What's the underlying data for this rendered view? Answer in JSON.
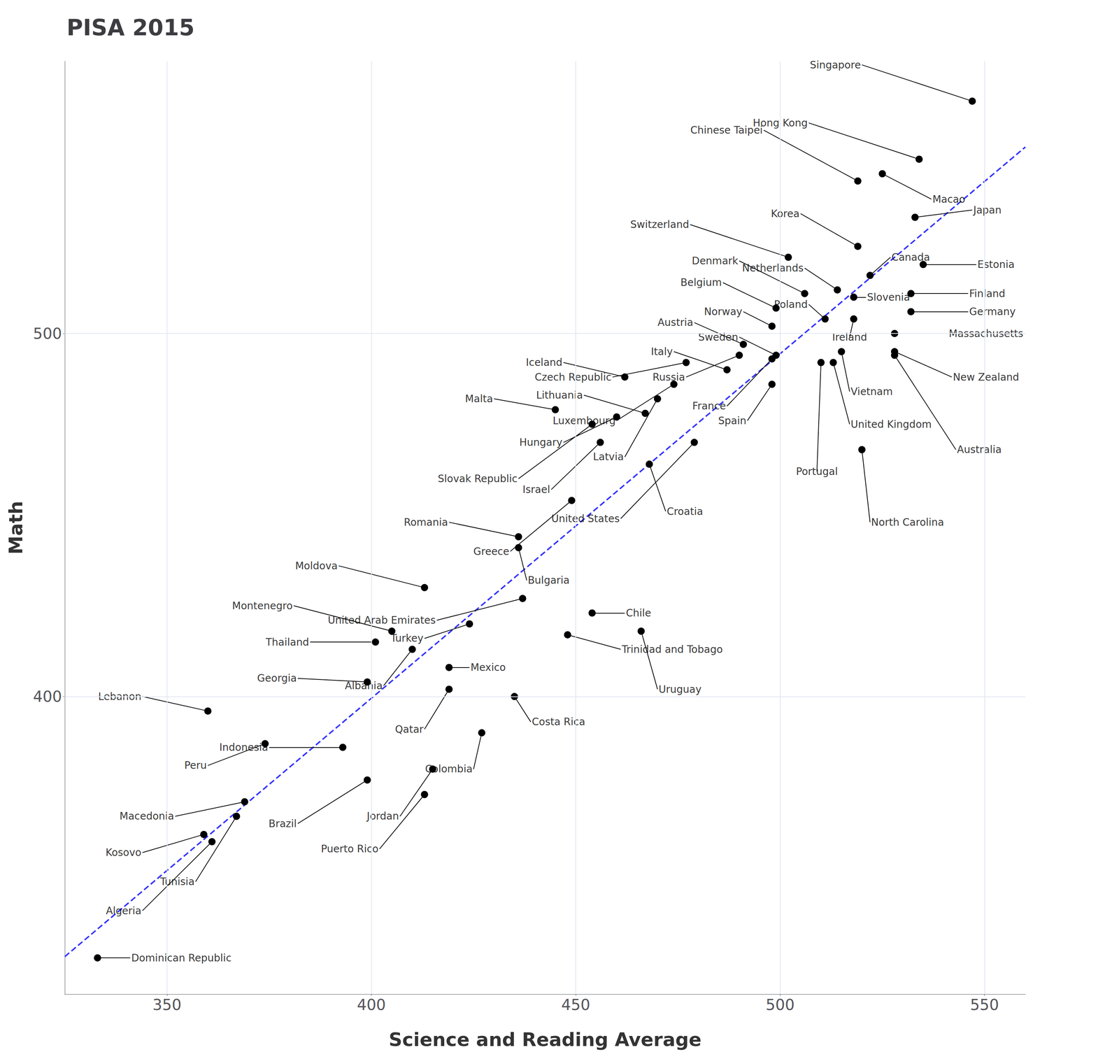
{
  "chart_data": {
    "type": "scatter",
    "title": "PISA 2015",
    "xlabel": "Science and Reading Average",
    "ylabel": "Math",
    "xlim": [
      325,
      560
    ],
    "ylim": [
      318,
      575
    ],
    "xticks": [
      350,
      400,
      450,
      500,
      550
    ],
    "yticks": [
      400,
      500
    ],
    "grid": true,
    "color": "#000000",
    "points": [
      {
        "name": "Singapore",
        "x": 547,
        "y": 564,
        "label_x": 520,
        "label_y": 574
      },
      {
        "name": "Hong Kong",
        "x": 534,
        "y": 548,
        "label_x": 507,
        "label_y": 558
      },
      {
        "name": "Macao",
        "x": 525,
        "y": 544,
        "label_x": 537,
        "label_y": 537
      },
      {
        "name": "Japan",
        "x": 533,
        "y": 532,
        "label_x": 547,
        "label_y": 534
      },
      {
        "name": "Chinese Taipei",
        "x": 519,
        "y": 542,
        "label_x": 496,
        "label_y": 556
      },
      {
        "name": "Korea",
        "x": 519,
        "y": 524,
        "label_x": 505,
        "label_y": 533
      },
      {
        "name": "Switzerland",
        "x": 502,
        "y": 521,
        "label_x": 478,
        "label_y": 530
      },
      {
        "name": "Estonia",
        "x": 535,
        "y": 519,
        "label_x": 548,
        "label_y": 519
      },
      {
        "name": "Canada",
        "x": 522,
        "y": 516,
        "label_x": 527,
        "label_y": 521
      },
      {
        "name": "Netherlands",
        "x": 514,
        "y": 512,
        "label_x": 506,
        "label_y": 518
      },
      {
        "name": "Denmark",
        "x": 506,
        "y": 511,
        "label_x": 490,
        "label_y": 520
      },
      {
        "name": "Belgium",
        "x": 499,
        "y": 507,
        "label_x": 486,
        "label_y": 514
      },
      {
        "name": "Germany",
        "x": 532,
        "y": 506,
        "label_x": 546,
        "label_y": 506
      },
      {
        "name": "Slovenia",
        "x": 518,
        "y": 510,
        "label_x": 521,
        "label_y": 510
      },
      {
        "name": "Finland",
        "x": 532,
        "y": 511,
        "label_x": 546,
        "label_y": 511
      },
      {
        "name": "Poland",
        "x": 511,
        "y": 504,
        "label_x": 507,
        "label_y": 508
      },
      {
        "name": "Austria",
        "x": 491,
        "y": 497,
        "label_x": 479,
        "label_y": 503
      },
      {
        "name": "Sweden",
        "x": 499,
        "y": 494,
        "label_x": 490,
        "label_y": 499
      },
      {
        "name": "Ireland",
        "x": 518,
        "y": 504,
        "label_x": 517,
        "label_y": 499
      },
      {
        "name": "Norway",
        "x": 498,
        "y": 502,
        "label_x": 491,
        "label_y": 506
      },
      {
        "name": "Italy",
        "x": 487,
        "y": 490,
        "label_x": 474,
        "label_y": 495
      },
      {
        "name": "Russia",
        "x": 490,
        "y": 494,
        "label_x": 477,
        "label_y": 488
      },
      {
        "name": "Iceland",
        "x": 462,
        "y": 488,
        "label_x": 447,
        "label_y": 492
      },
      {
        "name": "Czech Republic",
        "x": 477,
        "y": 492,
        "label_x": 459,
        "label_y": 488
      },
      {
        "name": "France",
        "x": 498,
        "y": 493,
        "label_x": 487,
        "label_y": 480
      },
      {
        "name": "Massachusetts",
        "x": 528,
        "y": 500,
        "label_x": 541,
        "label_y": 500
      },
      {
        "name": "Vietnam",
        "x": 515,
        "y": 495,
        "label_x": 517,
        "label_y": 484
      },
      {
        "name": "New Zealand",
        "x": 528,
        "y": 495,
        "label_x": 542,
        "label_y": 488
      },
      {
        "name": "Lithuania",
        "x": 467,
        "y": 478,
        "label_x": 452,
        "label_y": 483
      },
      {
        "name": "Luxembourg",
        "x": 474,
        "y": 486,
        "label_x": 460,
        "label_y": 476
      },
      {
        "name": "Malta",
        "x": 445,
        "y": 479,
        "label_x": 430,
        "label_y": 482
      },
      {
        "name": "Spain",
        "x": 498,
        "y": 486,
        "label_x": 492,
        "label_y": 476
      },
      {
        "name": "United Kingdom",
        "x": 513,
        "y": 492,
        "label_x": 517,
        "label_y": 475
      },
      {
        "name": "Hungary",
        "x": 460,
        "y": 477,
        "label_x": 447,
        "label_y": 470
      },
      {
        "name": "Latvia",
        "x": 470,
        "y": 482,
        "label_x": 462,
        "label_y": 466
      },
      {
        "name": "Portugal",
        "x": 510,
        "y": 492,
        "label_x": 509,
        "label_y": 462
      },
      {
        "name": "Australia",
        "x": 528,
        "y": 494,
        "label_x": 543,
        "label_y": 468
      },
      {
        "name": "Slovak Republic",
        "x": 454,
        "y": 475,
        "label_x": 436,
        "label_y": 460
      },
      {
        "name": "Israel",
        "x": 456,
        "y": 470,
        "label_x": 444,
        "label_y": 457
      },
      {
        "name": "United States",
        "x": 479,
        "y": 470,
        "label_x": 461,
        "label_y": 449
      },
      {
        "name": "North Carolina",
        "x": 520,
        "y": 468,
        "label_x": 522,
        "label_y": 448
      },
      {
        "name": "Romania",
        "x": 436,
        "y": 444,
        "label_x": 419,
        "label_y": 448
      },
      {
        "name": "Greece",
        "x": 449,
        "y": 454,
        "label_x": 434,
        "label_y": 440
      },
      {
        "name": "Croatia",
        "x": 468,
        "y": 464,
        "label_x": 472,
        "label_y": 451
      },
      {
        "name": "Bulgaria",
        "x": 436,
        "y": 441,
        "label_x": 438,
        "label_y": 432
      },
      {
        "name": "Moldova",
        "x": 413,
        "y": 430,
        "label_x": 392,
        "label_y": 436
      },
      {
        "name": "United Arab Emirates",
        "x": 437,
        "y": 427,
        "label_x": 416,
        "label_y": 421
      },
      {
        "name": "Montenegro",
        "x": 405,
        "y": 418,
        "label_x": 381,
        "label_y": 425
      },
      {
        "name": "Turkey",
        "x": 424,
        "y": 420,
        "label_x": 413,
        "label_y": 416
      },
      {
        "name": "Thailand",
        "x": 401,
        "y": 415,
        "label_x": 385,
        "label_y": 415
      },
      {
        "name": "Chile",
        "x": 454,
        "y": 423,
        "label_x": 462,
        "label_y": 423
      },
      {
        "name": "Trinidad and Tobago",
        "x": 448,
        "y": 417,
        "label_x": 461,
        "label_y": 413
      },
      {
        "name": "Georgia",
        "x": 399,
        "y": 404,
        "label_x": 382,
        "label_y": 405
      },
      {
        "name": "Albania",
        "x": 410,
        "y": 413,
        "label_x": 403,
        "label_y": 403
      },
      {
        "name": "Mexico",
        "x": 419,
        "y": 408,
        "label_x": 424,
        "label_y": 408
      },
      {
        "name": "Lebanon",
        "x": 360,
        "y": 396,
        "label_x": 344,
        "label_y": 400
      },
      {
        "name": "Uruguay",
        "x": 466,
        "y": 418,
        "label_x": 470,
        "label_y": 402
      },
      {
        "name": "Qatar",
        "x": 419,
        "y": 402,
        "label_x": 413,
        "label_y": 391
      },
      {
        "name": "Costa Rica",
        "x": 435,
        "y": 400,
        "label_x": 439,
        "label_y": 393
      },
      {
        "name": "Indonesia",
        "x": 393,
        "y": 386,
        "label_x": 375,
        "label_y": 386
      },
      {
        "name": "Peru",
        "x": 374,
        "y": 387,
        "label_x": 360,
        "label_y": 381
      },
      {
        "name": "Colombia",
        "x": 427,
        "y": 390,
        "label_x": 425,
        "label_y": 380
      },
      {
        "name": "Macedonia",
        "x": 369,
        "y": 371,
        "label_x": 352,
        "label_y": 367
      },
      {
        "name": "Brazil",
        "x": 399,
        "y": 377,
        "label_x": 382,
        "label_y": 365
      },
      {
        "name": "Jordan",
        "x": 415,
        "y": 380,
        "label_x": 407,
        "label_y": 367
      },
      {
        "name": "Puerto Rico",
        "x": 413,
        "y": 373,
        "label_x": 402,
        "label_y": 358
      },
      {
        "name": "Kosovo",
        "x": 359,
        "y": 362,
        "label_x": 344,
        "label_y": 357
      },
      {
        "name": "Tunisia",
        "x": 367,
        "y": 367,
        "label_x": 357,
        "label_y": 349
      },
      {
        "name": "Algeria",
        "x": 361,
        "y": 360,
        "label_x": 344,
        "label_y": 341
      },
      {
        "name": "Dominican Republic",
        "x": 333,
        "y": 328,
        "label_x": 341,
        "label_y": 328
      }
    ],
    "fit_line": {
      "type": "line",
      "x": [
        325,
        560
      ],
      "y": [
        328.35,
        551.36
      ],
      "color": "#3333ff",
      "line_style": "dashed"
    }
  }
}
